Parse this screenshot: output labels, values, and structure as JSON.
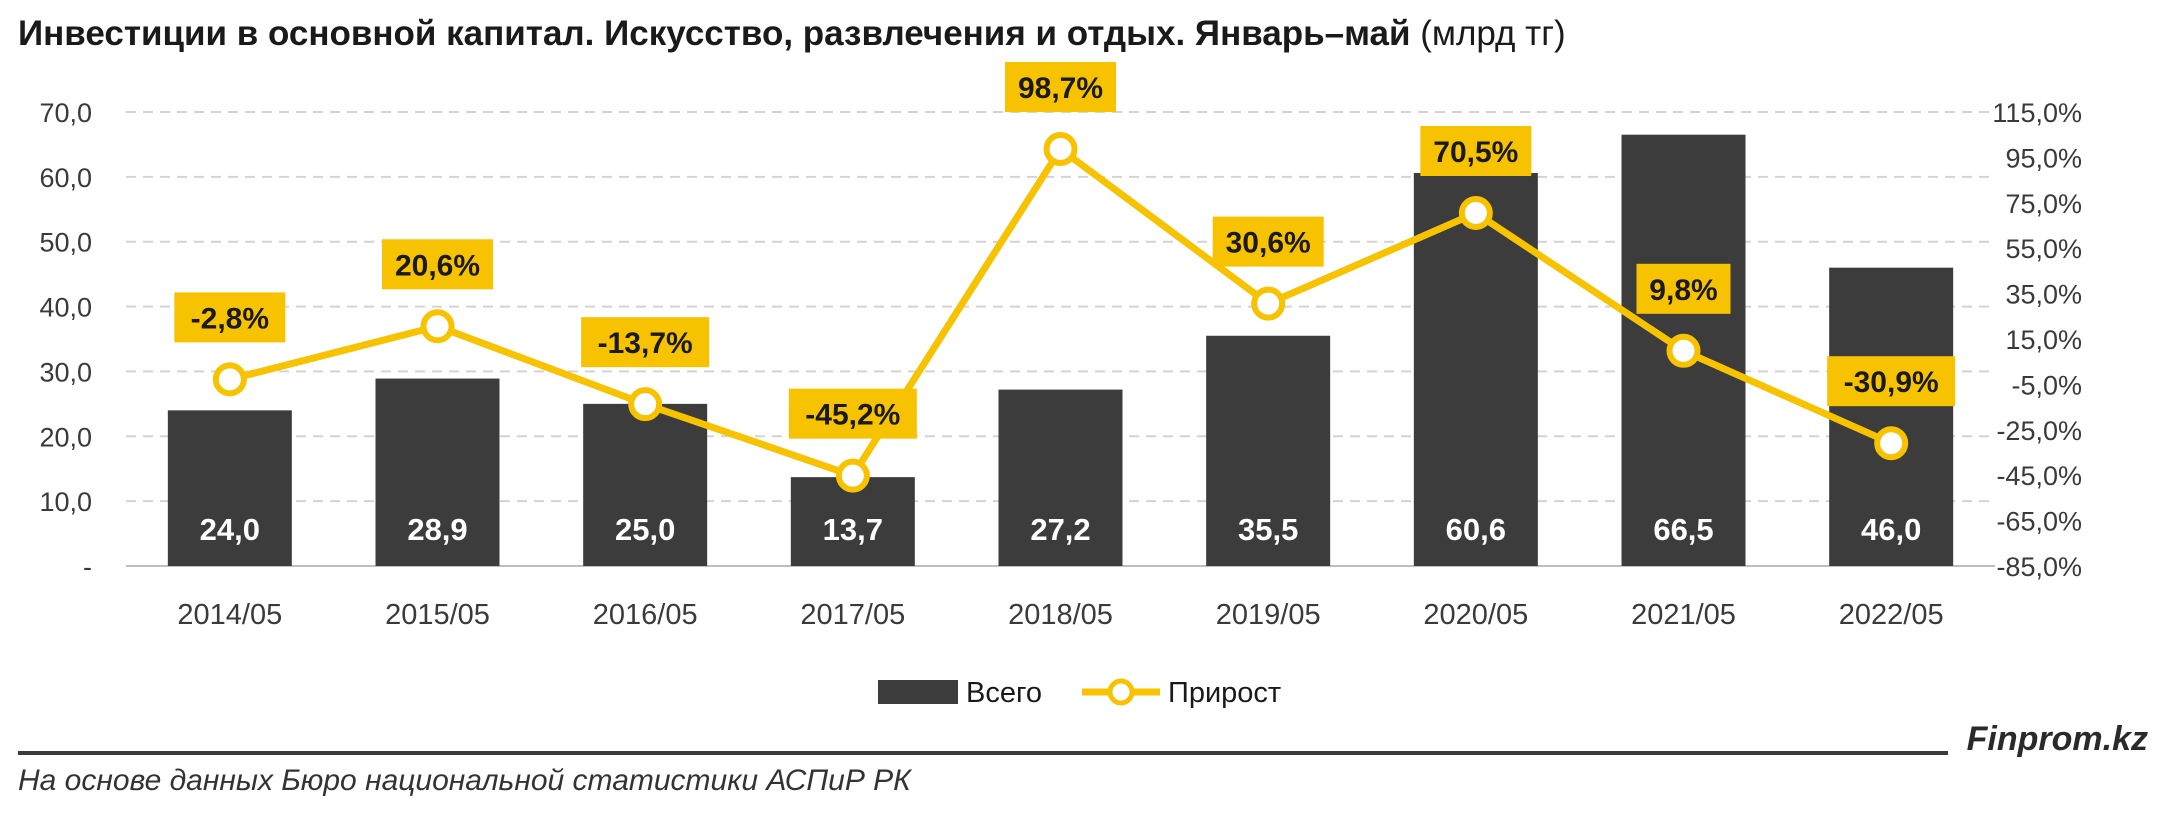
{
  "title": {
    "main": "Инвестиции в основной капитал. Искусство, развлечения и отдых. Январь–май",
    "unit": "(млрд тг)"
  },
  "footer": {
    "source": "На основе данных Бюро национальной статистики АСПиР РК",
    "brand": "Finprom.kz"
  },
  "colors": {
    "bar": "#3c3c3c",
    "line": "#f7c200",
    "grid": "#d3d3d3",
    "bar_label": "#ffffff",
    "axis_text": "#3a3a3a"
  },
  "chart_data": {
    "type": "bar",
    "categories": [
      "2014/05",
      "2015/05",
      "2016/05",
      "2017/05",
      "2018/05",
      "2019/05",
      "2020/05",
      "2021/05",
      "2022/05"
    ],
    "series": [
      {
        "name": "Всего",
        "type": "bar",
        "axis": "left",
        "values": [
          24.0,
          28.9,
          25.0,
          13.7,
          27.2,
          35.5,
          60.6,
          66.5,
          46.0
        ],
        "labels": [
          "24,0",
          "28,9",
          "25,0",
          "13,7",
          "27,2",
          "35,5",
          "60,6",
          "66,5",
          "46,0"
        ]
      },
      {
        "name": "Прирост",
        "type": "line",
        "axis": "right",
        "values": [
          -2.8,
          20.6,
          -13.7,
          -45.2,
          98.7,
          30.6,
          70.5,
          9.8,
          -30.9
        ],
        "labels": [
          "-2,8%",
          "20,6%",
          "-13,7%",
          "-45,2%",
          "98,7%",
          "30,6%",
          "70,5%",
          "9,8%",
          "-30,9%"
        ]
      }
    ],
    "y_left": {
      "min": 0,
      "max": 70,
      "step": 10,
      "tick_labels": [
        "-",
        "10,0",
        "20,0",
        "30,0",
        "40,0",
        "50,0",
        "60,0",
        "70,0"
      ]
    },
    "y_right": {
      "min": -85,
      "max": 115,
      "step": 20,
      "tick_labels": [
        "-85,0%",
        "-65,0%",
        "-45,0%",
        "-25,0%",
        "-5,0%",
        "15,0%",
        "35,0%",
        "55,0%",
        "75,0%",
        "95,0%",
        "115,0%"
      ]
    },
    "grid": true,
    "legend": {
      "position": "bottom",
      "items": [
        "Всего",
        "Прирост"
      ]
    }
  }
}
